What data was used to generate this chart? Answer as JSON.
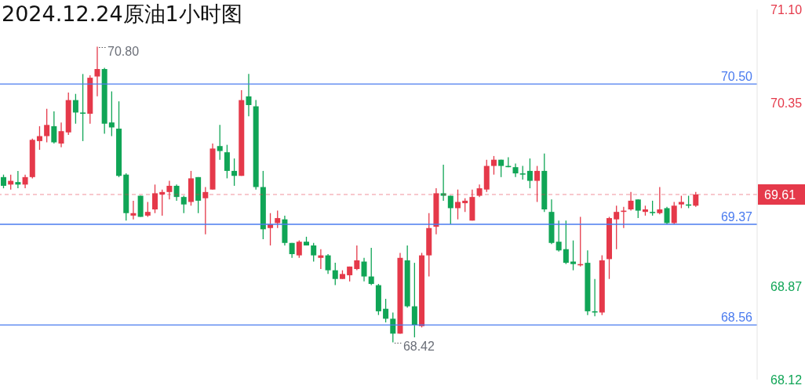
{
  "chart_data": {
    "type": "candlestick",
    "title": "2024.12.24原油1小时图",
    "categories": [
      null,
      null,
      null,
      null,
      null,
      null,
      null,
      null,
      null,
      null,
      null,
      null,
      null,
      null,
      null,
      null,
      null,
      null,
      null,
      null,
      null,
      null,
      null,
      null,
      null,
      null,
      null,
      null,
      null,
      null,
      null,
      null,
      null,
      null,
      null,
      null,
      null,
      null,
      null,
      null,
      null,
      null,
      null,
      null,
      null,
      null,
      null,
      null,
      null,
      null,
      null,
      null,
      null,
      null,
      null,
      null,
      null,
      null,
      null,
      null,
      null,
      null,
      null,
      null,
      null,
      null,
      null,
      null,
      null,
      null,
      null,
      null,
      null,
      null,
      null,
      null,
      null,
      null,
      null,
      null,
      null,
      null,
      null,
      null,
      null,
      null,
      null,
      null,
      null,
      null,
      null,
      null,
      null,
      null,
      null,
      null,
      null,
      null,
      null,
      null,
      null,
      null,
      null,
      null,
      null
    ],
    "ohlc": [
      [
        69.75,
        69.77,
        69.66,
        69.68
      ],
      [
        69.69,
        69.77,
        69.65,
        69.72
      ],
      [
        69.71,
        69.8,
        69.66,
        69.69
      ],
      [
        69.69,
        69.77,
        69.66,
        69.75
      ],
      [
        69.75,
        70.06,
        69.74,
        70.05
      ],
      [
        70.04,
        70.16,
        69.97,
        70.08
      ],
      [
        70.08,
        70.3,
        70.03,
        70.17
      ],
      [
        70.16,
        70.28,
        70.02,
        70.03
      ],
      [
        70.02,
        70.19,
        69.99,
        70.12
      ],
      [
        70.11,
        70.43,
        70.09,
        70.37
      ],
      [
        70.37,
        70.42,
        70.18,
        70.27
      ],
      [
        70.27,
        70.58,
        70.04,
        70.26
      ],
      [
        70.26,
        70.57,
        70.18,
        70.55
      ],
      [
        70.56,
        70.8,
        70.4,
        70.62
      ],
      [
        70.62,
        70.63,
        70.1,
        70.18
      ],
      [
        70.19,
        70.44,
        70.08,
        70.15
      ],
      [
        70.14,
        70.36,
        69.75,
        69.76
      ],
      [
        69.77,
        69.78,
        69.4,
        69.46
      ],
      [
        69.44,
        69.56,
        69.41,
        69.46
      ],
      [
        69.6,
        69.6,
        69.43,
        69.43
      ],
      [
        69.44,
        69.55,
        69.43,
        69.47
      ],
      [
        69.49,
        69.69,
        69.46,
        69.62
      ],
      [
        69.61,
        69.65,
        69.44,
        69.63
      ],
      [
        69.63,
        69.72,
        69.57,
        69.68
      ],
      [
        69.68,
        69.69,
        69.56,
        69.59
      ],
      [
        69.59,
        69.6,
        69.46,
        69.53
      ],
      [
        69.55,
        69.8,
        69.52,
        69.74
      ],
      [
        69.75,
        69.75,
        69.46,
        69.56
      ],
      [
        69.58,
        69.67,
        69.29,
        69.63
      ],
      [
        69.65,
        70.02,
        69.65,
        69.98
      ],
      [
        70.0,
        70.17,
        69.89,
        69.96
      ],
      [
        69.95,
        70.01,
        69.74,
        69.8
      ],
      [
        69.8,
        69.9,
        69.68,
        69.76
      ],
      [
        69.76,
        70.45,
        69.76,
        70.37
      ],
      [
        70.4,
        70.58,
        70.24,
        70.33
      ],
      [
        70.32,
        70.37,
        69.65,
        69.67
      ],
      [
        69.67,
        69.8,
        69.25,
        69.33
      ],
      [
        69.34,
        69.46,
        69.2,
        69.37
      ],
      [
        69.38,
        69.48,
        69.34,
        69.42
      ],
      [
        69.41,
        69.44,
        69.2,
        69.22
      ],
      [
        69.22,
        69.22,
        69.1,
        69.13
      ],
      [
        69.12,
        69.24,
        69.1,
        69.23
      ],
      [
        69.23,
        69.27,
        69.2,
        69.2
      ],
      [
        69.2,
        69.22,
        69.07,
        69.12
      ],
      [
        69.1,
        69.17,
        69.01,
        69.12
      ],
      [
        69.12,
        69.13,
        68.97,
        69.0
      ],
      [
        69.0,
        69.06,
        68.88,
        68.93
      ],
      [
        68.93,
        69.0,
        68.93,
        68.97
      ],
      [
        68.96,
        69.03,
        68.91,
        69.03
      ],
      [
        69.01,
        69.2,
        69.0,
        69.08
      ],
      [
        69.07,
        69.1,
        68.91,
        68.95
      ],
      [
        68.95,
        69.18,
        68.88,
        68.89
      ],
      [
        68.88,
        68.89,
        68.64,
        68.67
      ],
      [
        68.69,
        68.77,
        68.58,
        68.61
      ],
      [
        68.61,
        68.66,
        68.42,
        68.49
      ],
      [
        68.49,
        69.14,
        68.49,
        69.1
      ],
      [
        69.08,
        69.2,
        68.7,
        68.71
      ],
      [
        68.71,
        69.06,
        68.46,
        68.56
      ],
      [
        68.55,
        69.14,
        68.54,
        69.12
      ],
      [
        69.12,
        69.46,
        68.95,
        69.34
      ],
      [
        69.35,
        69.66,
        69.29,
        69.62
      ],
      [
        69.62,
        69.85,
        69.56,
        69.6
      ],
      [
        69.6,
        69.6,
        69.37,
        69.5
      ],
      [
        69.5,
        69.65,
        69.41,
        69.55
      ],
      [
        69.54,
        69.58,
        69.47,
        69.56
      ],
      [
        69.4,
        69.65,
        69.4,
        69.59
      ],
      [
        69.6,
        69.69,
        69.59,
        69.66
      ],
      [
        69.65,
        69.89,
        69.63,
        69.84
      ],
      [
        69.84,
        69.92,
        69.77,
        69.89
      ],
      [
        69.89,
        69.89,
        69.75,
        69.84
      ],
      [
        69.84,
        69.91,
        69.83,
        69.83
      ],
      [
        69.83,
        69.86,
        69.75,
        69.78
      ],
      [
        69.78,
        69.84,
        69.73,
        69.77
      ],
      [
        69.8,
        69.9,
        69.66,
        69.72
      ],
      [
        69.72,
        69.84,
        69.55,
        69.8
      ],
      [
        69.8,
        69.94,
        69.47,
        69.49
      ],
      [
        69.47,
        69.57,
        69.21,
        69.22
      ],
      [
        69.23,
        69.4,
        69.15,
        69.16
      ],
      [
        69.17,
        69.4,
        69.05,
        69.06
      ],
      [
        69.07,
        69.24,
        69.0,
        69.05
      ],
      [
        69.04,
        69.43,
        69.03,
        69.05
      ],
      [
        69.06,
        69.16,
        68.64,
        68.67
      ],
      [
        68.67,
        68.93,
        68.63,
        68.66
      ],
      [
        68.66,
        69.12,
        68.64,
        69.08
      ],
      [
        69.09,
        69.43,
        68.93,
        69.42
      ],
      [
        69.41,
        69.52,
        69.17,
        69.47
      ],
      [
        69.47,
        69.51,
        69.34,
        69.48
      ],
      [
        69.49,
        69.63,
        69.48,
        69.56
      ],
      [
        69.57,
        69.57,
        69.42,
        69.48
      ],
      [
        69.47,
        69.52,
        69.44,
        69.49
      ],
      [
        69.47,
        69.56,
        69.44,
        69.46
      ],
      [
        69.46,
        69.67,
        69.45,
        69.49
      ],
      [
        69.5,
        69.51,
        69.37,
        69.38
      ],
      [
        69.38,
        69.55,
        69.37,
        69.52
      ],
      [
        69.53,
        69.6,
        69.5,
        69.55
      ],
      [
        69.53,
        69.6,
        69.5,
        69.52
      ],
      [
        69.52,
        69.63,
        69.51,
        69.61
      ],
      null,
      null,
      null,
      null,
      null,
      null,
      null,
      null
    ],
    "colors": [
      "#10a556",
      "#e5394a",
      "#10a556",
      "#e5394a",
      "#e5394a",
      "#e5394a",
      "#e5394a",
      "#10a556",
      "#e5394a",
      "#e5394a",
      "#10a556",
      "#10a556",
      "#e5394a",
      "#e5394a",
      "#10a556",
      "#10a556",
      "#10a556",
      "#10a556",
      "#e5394a",
      "#10a556",
      "#e5394a",
      "#e5394a",
      "#e5394a",
      "#e5394a",
      "#10a556",
      "#10a556",
      "#e5394a",
      "#10a556",
      "#e5394a",
      "#e5394a",
      "#10a556",
      "#10a556",
      "#10a556",
      "#e5394a",
      "#10a556",
      "#10a556",
      "#10a556",
      "#e5394a",
      "#e5394a",
      "#10a556",
      "#10a556",
      "#e5394a",
      "#10a556",
      "#10a556",
      "#e5394a",
      "#10a556",
      "#10a556",
      "#e5394a",
      "#e5394a",
      "#e5394a",
      "#10a556",
      "#10a556",
      "#10a556",
      "#10a556",
      "#10a556",
      "#e5394a",
      "#10a556",
      "#10a556",
      "#e5394a",
      "#e5394a",
      "#e5394a",
      "#10a556",
      "#10a556",
      "#e5394a",
      "#e5394a",
      "#e5394a",
      "#e5394a",
      "#e5394a",
      "#e5394a",
      "#10a556",
      "#10a556",
      "#10a556",
      "#10a556",
      "#10a556",
      "#e5394a",
      "#10a556",
      "#10a556",
      "#10a556",
      "#10a556",
      "#10a556",
      "#e5394a",
      "#10a556",
      "#10a556",
      "#e5394a",
      "#e5394a",
      "#e5394a",
      "#e5394a",
      "#e5394a",
      "#10a556",
      "#e5394a",
      "#10a556",
      "#e5394a",
      "#10a556",
      "#e5394a",
      "#e5394a",
      "#10a556",
      "#e5394a",
      null,
      null,
      null,
      null,
      null,
      null,
      null,
      null
    ],
    "ylim": [
      68.12,
      71.1
    ],
    "yticks": [
      {
        "value": 71.1,
        "label": "71.10"
      },
      {
        "value": 70.35,
        "label": "70.35"
      },
      {
        "value": 68.87,
        "label": "68.87"
      },
      {
        "value": 68.12,
        "label": "68.12"
      }
    ],
    "tick_labels": "y",
    "ref_lines": [
      {
        "axis": "y",
        "value": 70.5,
        "label": "70.50",
        "color": "#4a7bef"
      },
      {
        "axis": "y",
        "value": 69.37,
        "label": "69.37",
        "color": "#4a7bef"
      },
      {
        "axis": "y",
        "value": 68.56,
        "label": "68.56",
        "color": "#4a7bef"
      },
      {
        "axis": "y",
        "value": 69.61,
        "label": "69.61",
        "color": "#e5394a",
        "line_style": "dashed"
      }
    ],
    "annotations": [
      "70.80",
      "68.42"
    ]
  }
}
